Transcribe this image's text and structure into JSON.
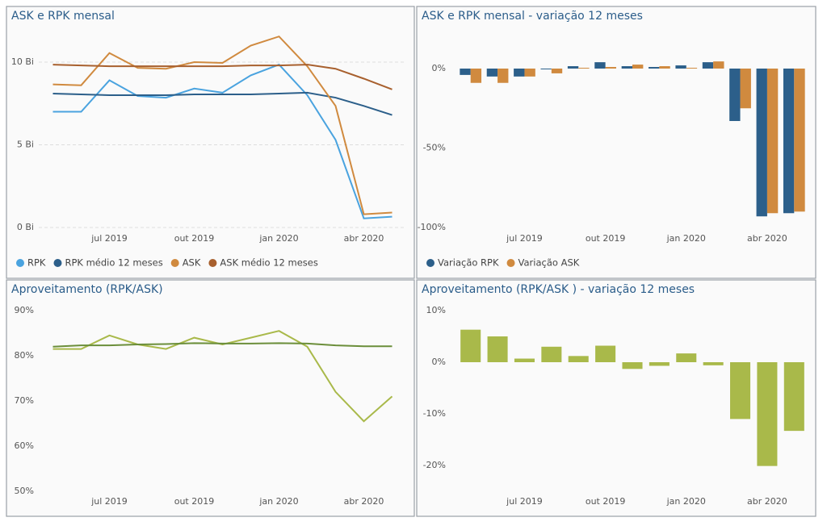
{
  "chart_data": [
    {
      "type": "line",
      "title": "ASK e RPK mensal",
      "categories": [
        null,
        null,
        "jul 2019",
        null,
        null,
        "out 2019",
        null,
        null,
        "jan 2020",
        null,
        null,
        "abr 2020",
        null
      ],
      "series": [
        {
          "name": "RPK",
          "color": "#4aa3df",
          "values": [
            7.0,
            7.0,
            8.9,
            7.95,
            7.85,
            8.4,
            8.15,
            9.2,
            9.85,
            8.0,
            5.3,
            0.55,
            0.65
          ]
        },
        {
          "name": "RPK médio 12 meses",
          "color": "#2c5f8a",
          "values": [
            8.1,
            8.05,
            8.0,
            8.0,
            8.0,
            8.05,
            8.05,
            8.05,
            8.1,
            8.15,
            7.85,
            7.35,
            6.8
          ]
        },
        {
          "name": "ASK",
          "color": "#d08a3f",
          "values": [
            8.65,
            8.6,
            10.55,
            9.65,
            9.6,
            10.0,
            9.95,
            11.0,
            11.55,
            9.75,
            7.35,
            0.8,
            0.9
          ]
        },
        {
          "name": "ASK médio 12 meses",
          "color": "#a8602e",
          "values": [
            9.85,
            9.8,
            9.75,
            9.75,
            9.75,
            9.75,
            9.75,
            9.8,
            9.8,
            9.85,
            9.6,
            9.0,
            8.35
          ]
        }
      ],
      "ylim": [
        0,
        12
      ],
      "yticks": [
        {
          "value": 0,
          "label": "0 Bi"
        },
        {
          "value": 5,
          "label": "5 Bi"
        },
        {
          "value": 10,
          "label": "10 Bi"
        }
      ],
      "grid": true,
      "legend": "bottom"
    },
    {
      "type": "bar",
      "title": "ASK e RPK mensal - variação 12 meses",
      "categories": [
        null,
        null,
        "jul 2019",
        null,
        null,
        "out 2019",
        null,
        null,
        "jan 2020",
        null,
        null,
        "abr 2020",
        null
      ],
      "series": [
        {
          "name": "Variação RPK",
          "color": "#2c5f8a",
          "values": [
            -4,
            -5,
            -5,
            -0.5,
            1.5,
            4,
            1.5,
            1,
            2,
            4,
            -33,
            -93,
            -91
          ]
        },
        {
          "name": "Variação ASK",
          "color": "#d08a3f",
          "values": [
            -9,
            -9,
            -5,
            -3,
            0.5,
            1,
            2.5,
            1.5,
            0.5,
            4.5,
            -25,
            -91,
            -90
          ]
        }
      ],
      "ylim": [
        -100,
        20
      ],
      "yticks": [
        {
          "value": -100,
          "label": "-100%"
        },
        {
          "value": -50,
          "label": "-50%"
        },
        {
          "value": 0,
          "label": "0%"
        }
      ],
      "grid": false,
      "legend": "bottom"
    },
    {
      "type": "line",
      "title": "Aproveitamento (RPK/ASK)",
      "categories": [
        null,
        null,
        "jul 2019",
        null,
        null,
        "out 2019",
        null,
        null,
        "jan 2020",
        null,
        null,
        "abr 2020",
        null
      ],
      "series": [
        {
          "color": "#a9b94a",
          "values": [
            81.5,
            81.5,
            84.5,
            82.5,
            81.5,
            84,
            82.5,
            84,
            85.5,
            82,
            72,
            65.5,
            71
          ]
        },
        {
          "color": "#6b8e3a",
          "values": [
            82,
            82.3,
            82.3,
            82.5,
            82.6,
            82.8,
            82.7,
            82.7,
            82.8,
            82.7,
            82.3,
            82.1,
            82.1
          ]
        }
      ],
      "ylim": [
        50,
        92
      ],
      "yticks": [
        {
          "value": 50,
          "label": "50%"
        },
        {
          "value": 60,
          "label": "60%"
        },
        {
          "value": 70,
          "label": "70%"
        },
        {
          "value": 80,
          "label": "80%"
        },
        {
          "value": 90,
          "label": "90%"
        }
      ],
      "grid": false
    },
    {
      "type": "bar",
      "title": "Aproveitamento (RPK/ASK ) - variação 12 meses",
      "categories": [
        null,
        null,
        "jul 2019",
        null,
        null,
        "out 2019",
        null,
        null,
        "jan 2020",
        null,
        null,
        "abr 2020",
        null
      ],
      "values": [
        6.3,
        5,
        0.7,
        3,
        1.2,
        3.2,
        -1.3,
        -0.7,
        1.7,
        -0.6,
        -11,
        -20.1,
        -13.3
      ],
      "color": "#a9b94a",
      "ylim": [
        -23,
        11
      ],
      "yticks": [
        {
          "value": -20,
          "label": "-20%"
        },
        {
          "value": -10,
          "label": "-10%"
        },
        {
          "value": 0,
          "label": "0%"
        },
        {
          "value": 10,
          "label": "10%"
        }
      ],
      "grid": false
    }
  ]
}
